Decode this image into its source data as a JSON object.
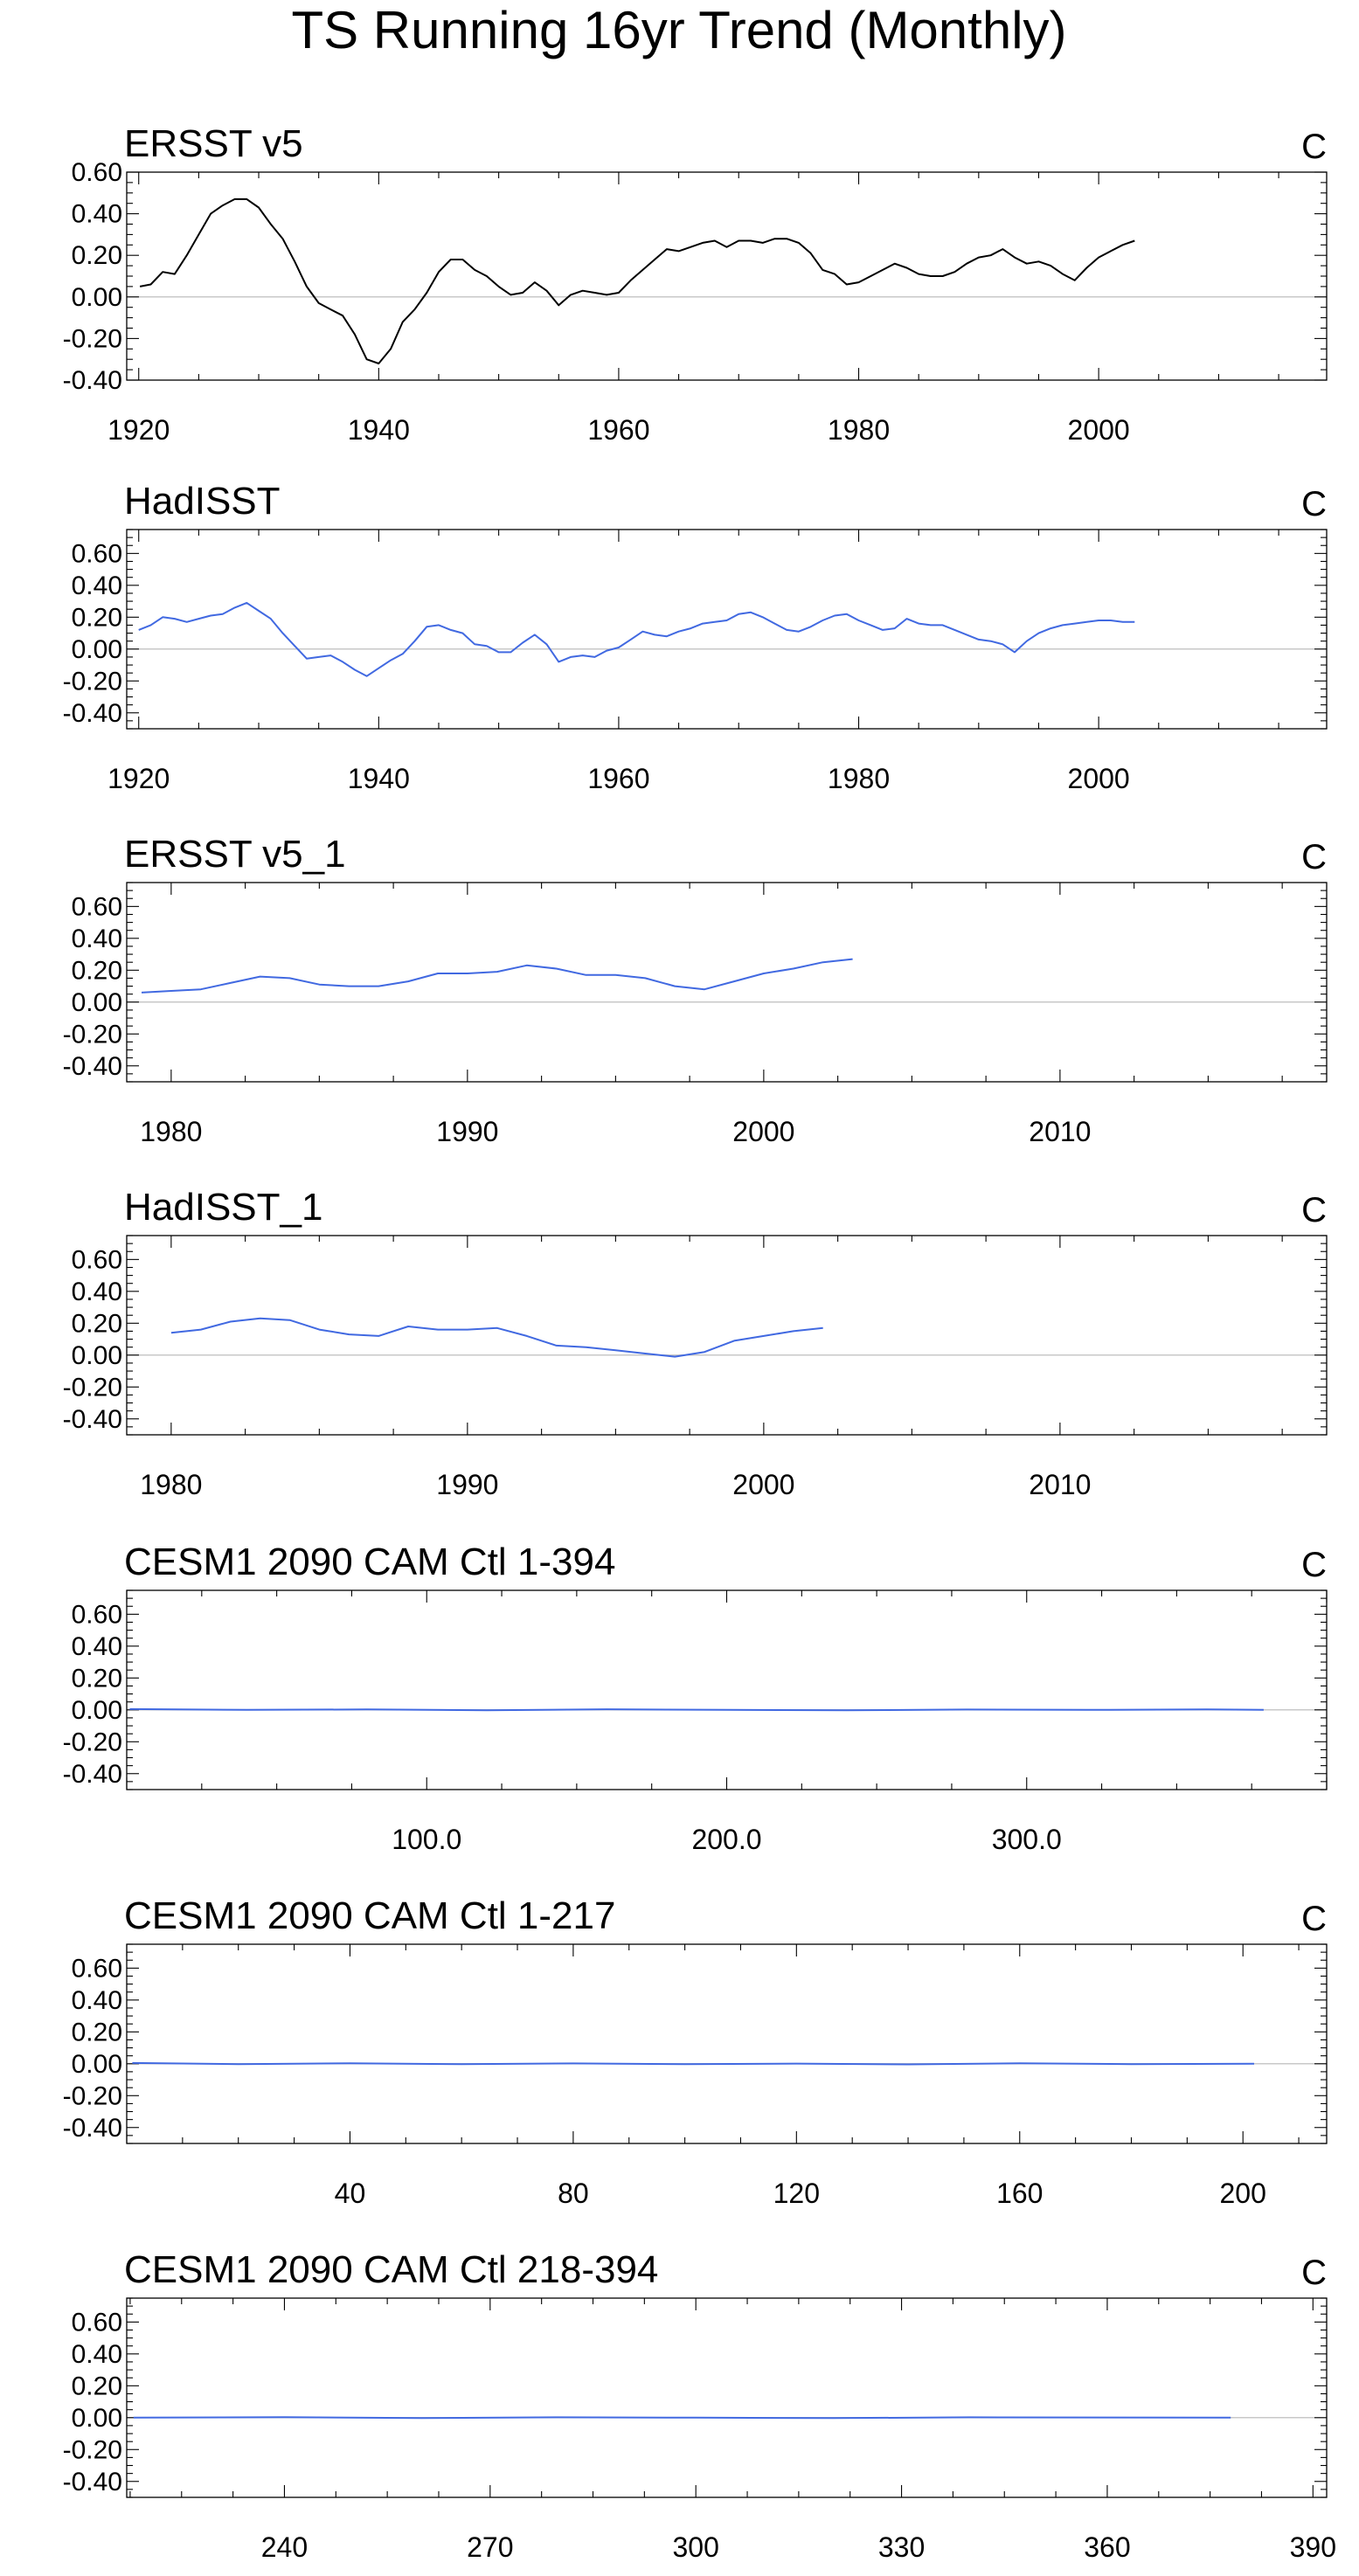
{
  "title": "TS Running 16yr Trend (Monthly)",
  "chart_data": [
    {
      "type": "line",
      "title": "ERSST v5",
      "units": "C",
      "color": "#000000",
      "xlim": [
        1919,
        2019
      ],
      "ylim": [
        -0.4,
        0.6
      ],
      "yticks": [
        "0.60",
        "0.40",
        "0.20",
        "0.00",
        "-0.20",
        "-0.40"
      ],
      "ytick_values": [
        0.6,
        0.4,
        0.2,
        0.0,
        -0.2,
        -0.4
      ],
      "xtick_values": [
        1920,
        1940,
        1960,
        1980,
        2000
      ],
      "xticks": [
        "1920",
        "1940",
        "1960",
        "1980",
        "2000"
      ],
      "x": [
        1920.1,
        1921,
        1922,
        1923,
        1924,
        1925,
        1926,
        1927,
        1928,
        1929,
        1930,
        1931,
        1932,
        1933,
        1934,
        1935,
        1936,
        1937,
        1938,
        1939,
        1940,
        1941,
        1942,
        1943,
        1944,
        1945,
        1946,
        1947,
        1948,
        1949,
        1950,
        1951,
        1952,
        1953,
        1954,
        1955,
        1956,
        1957,
        1958,
        1959,
        1960,
        1961,
        1962,
        1963,
        1964,
        1965,
        1966,
        1967,
        1968,
        1969,
        1970,
        1971,
        1972,
        1973,
        1974,
        1975,
        1976,
        1977,
        1978,
        1979,
        1980,
        1981,
        1982,
        1983,
        1984,
        1985,
        1986,
        1987,
        1988,
        1989,
        1990,
        1991,
        1992,
        1993,
        1994,
        1995,
        1996,
        1997,
        1998,
        1999,
        2000,
        2001,
        2002,
        2003
      ],
      "y": [
        0.05,
        0.06,
        0.12,
        0.11,
        0.2,
        0.3,
        0.4,
        0.44,
        0.47,
        0.47,
        0.43,
        0.35,
        0.28,
        0.17,
        0.05,
        -0.03,
        -0.06,
        -0.09,
        -0.18,
        -0.3,
        -0.32,
        -0.25,
        -0.12,
        -0.06,
        0.02,
        0.12,
        0.18,
        0.18,
        0.13,
        0.1,
        0.05,
        0.01,
        0.02,
        0.07,
        0.03,
        -0.04,
        0.01,
        0.03,
        0.02,
        0.01,
        0.02,
        0.08,
        0.13,
        0.18,
        0.23,
        0.22,
        0.24,
        0.26,
        0.27,
        0.24,
        0.27,
        0.27,
        0.26,
        0.28,
        0.28,
        0.26,
        0.21,
        0.13,
        0.11,
        0.06,
        0.07,
        0.1,
        0.13,
        0.16,
        0.14,
        0.11,
        0.1,
        0.1,
        0.12,
        0.16,
        0.19,
        0.2,
        0.23,
        0.19,
        0.16,
        0.17,
        0.15,
        0.11,
        0.08,
        0.14,
        0.19,
        0.22,
        0.25,
        0.27
      ]
    },
    {
      "type": "line",
      "title": "HadISST",
      "units": "C",
      "color": "#4169e1",
      "xlim": [
        1919,
        2019
      ],
      "ylim": [
        -0.5,
        0.75
      ],
      "yticks": [
        "0.60",
        "0.40",
        "0.20",
        "0.00",
        "-0.20",
        "-0.40"
      ],
      "ytick_values": [
        0.6,
        0.4,
        0.2,
        0.0,
        -0.2,
        -0.4
      ],
      "xtick_values": [
        1920,
        1940,
        1960,
        1980,
        2000
      ],
      "xticks": [
        "1920",
        "1940",
        "1960",
        "1980",
        "2000"
      ],
      "x": [
        1920,
        1921,
        1922,
        1923,
        1924,
        1925,
        1926,
        1927,
        1928,
        1929,
        1930,
        1931,
        1932,
        1933,
        1934,
        1935,
        1936,
        1937,
        1938,
        1939,
        1940,
        1941,
        1942,
        1943,
        1944,
        1945,
        1946,
        1947,
        1948,
        1949,
        1950,
        1951,
        1952,
        1953,
        1954,
        1955,
        1956,
        1957,
        1958,
        1959,
        1960,
        1961,
        1962,
        1963,
        1964,
        1965,
        1966,
        1967,
        1968,
        1969,
        1970,
        1971,
        1972,
        1973,
        1974,
        1975,
        1976,
        1977,
        1978,
        1979,
        1980,
        1981,
        1982,
        1983,
        1984,
        1985,
        1986,
        1987,
        1988,
        1989,
        1990,
        1991,
        1992,
        1993,
        1994,
        1995,
        1996,
        1997,
        1998,
        1999,
        2000,
        2001,
        2002,
        2003
      ],
      "y": [
        0.12,
        0.15,
        0.2,
        0.19,
        0.17,
        0.19,
        0.21,
        0.22,
        0.26,
        0.29,
        0.24,
        0.19,
        0.1,
        0.02,
        -0.06,
        -0.05,
        -0.04,
        -0.08,
        -0.13,
        -0.17,
        -0.12,
        -0.07,
        -0.03,
        0.05,
        0.14,
        0.15,
        0.12,
        0.1,
        0.03,
        0.02,
        -0.02,
        -0.02,
        0.04,
        0.09,
        0.03,
        -0.08,
        -0.05,
        -0.04,
        -0.05,
        -0.01,
        0.01,
        0.06,
        0.11,
        0.09,
        0.08,
        0.11,
        0.13,
        0.16,
        0.17,
        0.18,
        0.22,
        0.23,
        0.2,
        0.16,
        0.12,
        0.11,
        0.14,
        0.18,
        0.21,
        0.22,
        0.18,
        0.15,
        0.12,
        0.13,
        0.19,
        0.16,
        0.15,
        0.15,
        0.12,
        0.09,
        0.06,
        0.05,
        0.03,
        -0.02,
        0.05,
        0.1,
        0.13,
        0.15,
        0.16,
        0.17,
        0.18,
        0.18,
        0.17,
        0.17
      ]
    },
    {
      "type": "line",
      "title": "ERSST v5_1",
      "units": "C",
      "color": "#4169e1",
      "xlim": [
        1978.5,
        2019
      ],
      "ylim": [
        -0.5,
        0.75
      ],
      "yticks": [
        "0.60",
        "0.40",
        "0.20",
        "0.00",
        "-0.20",
        "-0.40"
      ],
      "ytick_values": [
        0.6,
        0.4,
        0.2,
        0.0,
        -0.2,
        -0.4
      ],
      "xtick_values": [
        1980,
        1990,
        2000,
        2010
      ],
      "xticks": [
        "1980",
        "1990",
        "2000",
        "2010"
      ],
      "x": [
        1979,
        1980,
        1981,
        1982,
        1983,
        1984,
        1985,
        1986,
        1987,
        1988,
        1989,
        1990,
        1991,
        1992,
        1993,
        1994,
        1995,
        1996,
        1997,
        1998,
        1999,
        2000,
        2001,
        2002,
        2003
      ],
      "y": [
        0.06,
        0.07,
        0.08,
        0.12,
        0.16,
        0.15,
        0.11,
        0.1,
        0.1,
        0.13,
        0.18,
        0.18,
        0.19,
        0.23,
        0.21,
        0.17,
        0.17,
        0.15,
        0.1,
        0.08,
        0.13,
        0.18,
        0.21,
        0.25,
        0.27
      ]
    },
    {
      "type": "line",
      "title": "HadISST_1",
      "units": "C",
      "color": "#4169e1",
      "xlim": [
        1978.5,
        2019
      ],
      "ylim": [
        -0.5,
        0.75
      ],
      "yticks": [
        "0.60",
        "0.40",
        "0.20",
        "0.00",
        "-0.20",
        "-0.40"
      ],
      "ytick_values": [
        0.6,
        0.4,
        0.2,
        0.0,
        -0.2,
        -0.4
      ],
      "xtick_values": [
        1980,
        1990,
        2000,
        2010
      ],
      "xticks": [
        "1980",
        "1990",
        "2000",
        "2010"
      ],
      "x": [
        1980,
        1981,
        1982,
        1983,
        1984,
        1985,
        1986,
        1987,
        1988,
        1989,
        1990,
        1991,
        1992,
        1993,
        1994,
        1995,
        1996,
        1997,
        1998,
        1999,
        2000,
        2001,
        2002
      ],
      "y": [
        0.14,
        0.16,
        0.21,
        0.23,
        0.22,
        0.16,
        0.13,
        0.12,
        0.18,
        0.16,
        0.16,
        0.17,
        0.12,
        0.06,
        0.05,
        0.03,
        0.01,
        -0.01,
        0.02,
        0.09,
        0.12,
        0.15,
        0.17
      ]
    },
    {
      "type": "line",
      "title": "CESM1 2090 CAM Ctl 1-394",
      "units": "C",
      "color": "#4169e1",
      "xlim": [
        0,
        400
      ],
      "ylim": [
        -0.5,
        0.75
      ],
      "yticks": [
        "0.60",
        "0.40",
        "0.20",
        "0.00",
        "-0.20",
        "-0.40"
      ],
      "ytick_values": [
        0.6,
        0.4,
        0.2,
        0.0,
        -0.2,
        -0.4
      ],
      "xtick_values": [
        100,
        200,
        300
      ],
      "xticks": [
        "100.0",
        "200.0",
        "300.0"
      ],
      "x": [
        1,
        40,
        80,
        120,
        160,
        200,
        240,
        280,
        320,
        360,
        379
      ],
      "y": [
        0.005,
        0.0,
        0.003,
        -0.002,
        0.004,
        0.0,
        -0.003,
        0.002,
        0.0,
        0.003,
        0.0
      ]
    },
    {
      "type": "line",
      "title": "CESM1 2090 CAM Ctl 1-217",
      "units": "C",
      "color": "#4169e1",
      "xlim": [
        0,
        215
      ],
      "ylim": [
        -0.5,
        0.75
      ],
      "yticks": [
        "0.60",
        "0.40",
        "0.20",
        "0.00",
        "-0.20",
        "-0.40"
      ],
      "ytick_values": [
        0.6,
        0.4,
        0.2,
        0.0,
        -0.2,
        -0.4
      ],
      "xtick_values": [
        40,
        80,
        120,
        160,
        200
      ],
      "xticks": [
        "40",
        "80",
        "120",
        "160",
        "200"
      ],
      "x": [
        1,
        20,
        40,
        60,
        80,
        100,
        120,
        140,
        160,
        180,
        202
      ],
      "y": [
        0.005,
        -0.002,
        0.003,
        -0.003,
        0.002,
        -0.002,
        0.001,
        -0.004,
        0.003,
        -0.002,
        0.0
      ]
    },
    {
      "type": "line",
      "title": "CESM1 2090 CAM Ctl 218-394",
      "units": "C",
      "color": "#4169e1",
      "xlim": [
        217,
        392
      ],
      "ylim": [
        -0.5,
        0.75
      ],
      "yticks": [
        "0.60",
        "0.40",
        "0.20",
        "0.00",
        "-0.20",
        "-0.40"
      ],
      "ytick_values": [
        0.6,
        0.4,
        0.2,
        0.0,
        -0.2,
        -0.4
      ],
      "xtick_values": [
        240,
        270,
        300,
        330,
        360,
        390
      ],
      "xticks": [
        "240",
        "270",
        "300",
        "330",
        "360",
        "390"
      ],
      "x": [
        218,
        240,
        260,
        280,
        300,
        320,
        340,
        360,
        378
      ],
      "y": [
        0.0,
        0.003,
        -0.002,
        0.002,
        0.0,
        -0.003,
        0.002,
        0.001,
        0.0
      ]
    }
  ]
}
